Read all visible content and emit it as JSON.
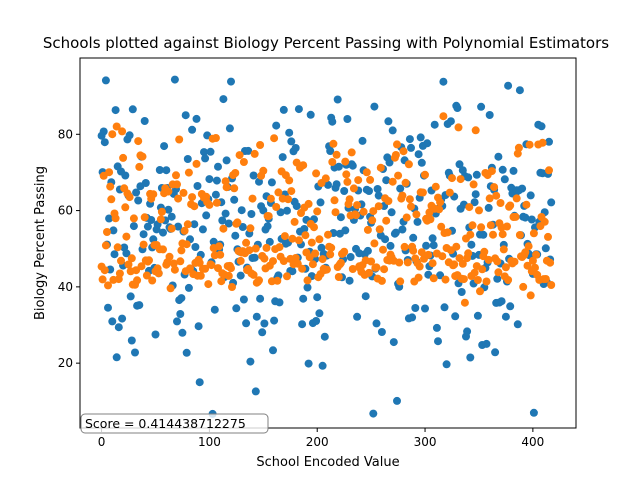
{
  "chart_data": {
    "type": "scatter",
    "title": "Schools plotted against Biology Percent Passing with Polynomial Estimators",
    "xlabel": "School Encoded Value",
    "ylabel": "Biology Percent Passing",
    "xlim": [
      -20,
      440
    ],
    "ylim": [
      3,
      100
    ],
    "xticks": [
      0,
      100,
      200,
      300,
      400
    ],
    "yticks": [
      20,
      40,
      60,
      80
    ],
    "grid": false,
    "annotation": "Score = 0.414438712275",
    "series": [
      {
        "color": "#1f77b4",
        "seed": 7,
        "n": 418
      },
      {
        "color": "#ff7f0e",
        "seed": 13,
        "n": 418
      }
    ]
  }
}
